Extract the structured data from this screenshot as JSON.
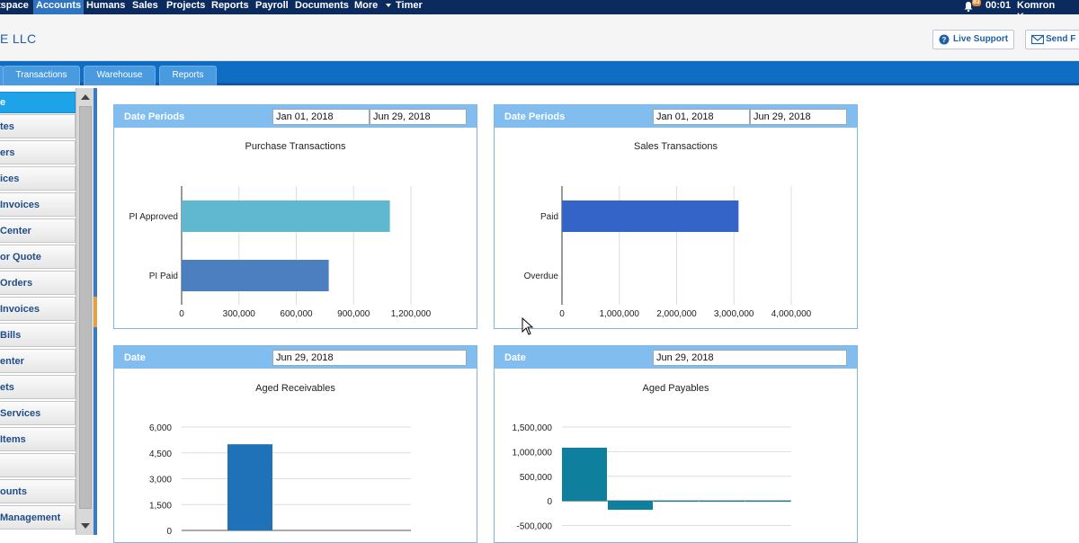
{
  "topnav": {
    "items": [
      "tspace",
      "Accounts",
      "Humans",
      "Sales",
      "Projects",
      "Reports",
      "Payroll",
      "Documents",
      "More",
      "Timer"
    ],
    "active_index": 1,
    "notification_count": "83",
    "time": "00:01",
    "user": "Komron Kam"
  },
  "header": {
    "company": "E LLC",
    "live_support": "Live Support",
    "send": "Send F"
  },
  "tabs": [
    "Transactions",
    "Warehouse",
    "Reports"
  ],
  "sidebar": {
    "items": [
      "e",
      "tes",
      "ers",
      "ices",
      "Invoices",
      "Center",
      "or Quote",
      "Orders",
      "Invoices",
      "Bills",
      "enter",
      "ets",
      "Services",
      "Items",
      "",
      "ounts",
      "Management"
    ],
    "active_index": 0
  },
  "panels": {
    "purchase": {
      "header_label": "Date Periods",
      "date_from": "Jan 01, 2018",
      "date_to": "Jun 29, 2018"
    },
    "sales": {
      "header_label": "Date Periods",
      "date_from": "Jan 01, 2018",
      "date_to": "Jun 29, 2018"
    },
    "receivables": {
      "header_label": "Date",
      "date": "Jun 29, 2018"
    },
    "payables": {
      "header_label": "Date",
      "date": "Jun 29, 2018"
    }
  },
  "chart_data": [
    {
      "type": "bar",
      "orientation": "horizontal",
      "title": "Purchase Transactions",
      "categories": [
        "PI Approved",
        "PI Paid"
      ],
      "values": [
        1090000,
        770000
      ],
      "colors": [
        "#5fb7d0",
        "#4c7fbf"
      ],
      "ticks": [
        0,
        300000,
        600000,
        900000,
        1200000
      ],
      "tick_labels": [
        "0",
        "300,000",
        "600,000",
        "900,000",
        "1,200,000"
      ],
      "xlim": [
        0,
        1200000
      ]
    },
    {
      "type": "bar",
      "orientation": "horizontal",
      "title": "Sales Transactions",
      "categories": [
        "Paid",
        "Overdue"
      ],
      "values": [
        3080000,
        0
      ],
      "colors": [
        "#3564c8",
        "#3564c8"
      ],
      "ticks": [
        0,
        1000000,
        2000000,
        3000000,
        4000000
      ],
      "tick_labels": [
        "0",
        "1,000,000",
        "2,000,000",
        "3,000,000",
        "4,000,000"
      ],
      "xlim": [
        0,
        4000000
      ]
    },
    {
      "type": "bar",
      "orientation": "vertical",
      "title": "Aged Receivables",
      "values": [
        0,
        5000,
        0,
        0,
        0
      ],
      "colors": [
        "#1f72b8"
      ],
      "ticks": [
        0,
        1500,
        3000,
        4500,
        6000
      ],
      "tick_labels": [
        "0",
        "1,500",
        "3,000",
        "4,500",
        "6,000"
      ],
      "ylim": [
        0,
        6000
      ]
    },
    {
      "type": "bar",
      "orientation": "vertical",
      "title": "Aged Payables",
      "values": [
        1080000,
        -180000,
        -15000,
        -10000,
        -10000
      ],
      "colors": [
        "#0e7f9c"
      ],
      "ticks": [
        -500000,
        0,
        500000,
        1000000,
        1500000
      ],
      "tick_labels": [
        "-500,000",
        "0",
        "500,000",
        "1,000,000",
        "1,500,000"
      ],
      "ylim": [
        -600000,
        1500000
      ]
    }
  ]
}
